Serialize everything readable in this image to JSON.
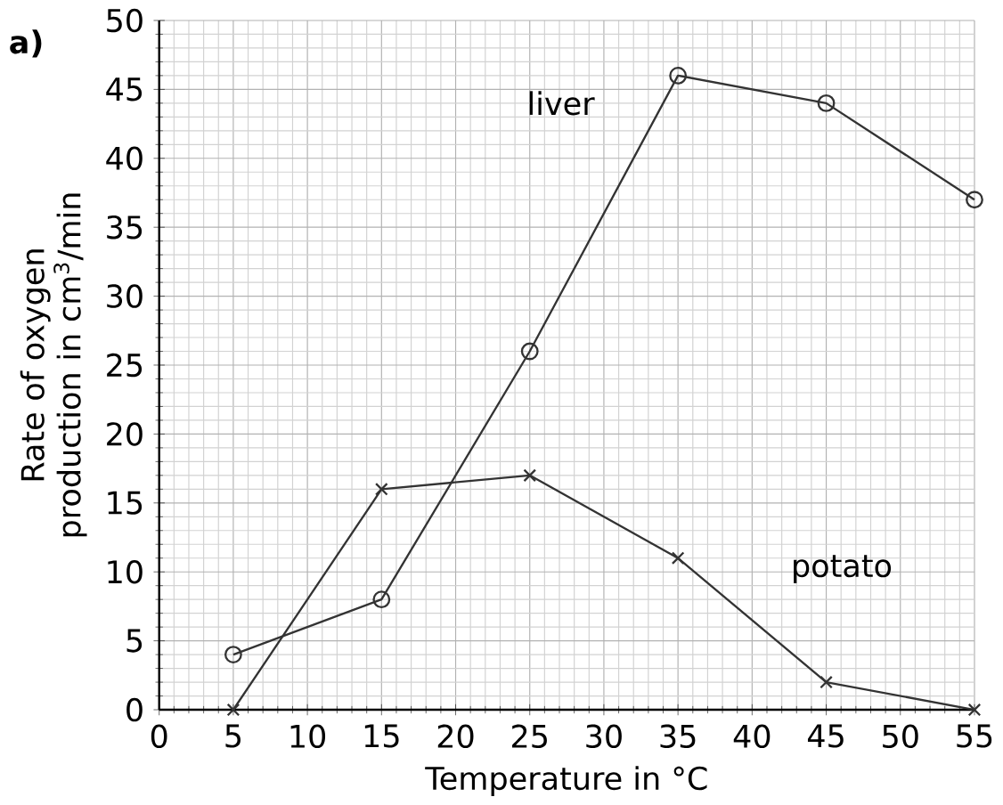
{
  "chart_data": {
    "type": "line",
    "xlabel": "Temperature in °C",
    "ylabel": "Rate of oxygen production in cm$^{3}$/min",
    "annotations": [
      "a)"
    ],
    "x": [
      5,
      15,
      25,
      35,
      45,
      55
    ],
    "series": [
      {
        "name": "liver",
        "color": "#333333",
        "values": [
          4,
          8,
          26,
          46,
          44,
          37
        ],
        "marker": "circle"
      },
      {
        "name": "potato",
        "color": "#333333",
        "values": [
          0,
          16,
          17,
          11,
          2,
          0
        ],
        "marker": "cross"
      }
    ],
    "xlim": [
      0,
      55
    ],
    "ylim": [
      0,
      50
    ],
    "xticks": [
      0,
      5,
      10,
      15,
      20,
      25,
      30,
      35,
      40,
      45,
      50,
      55
    ],
    "yticks": [
      0,
      5,
      10,
      15,
      20,
      25,
      30,
      35,
      40,
      45,
      50
    ],
    "grid": true,
    "line_style": "solid"
  }
}
